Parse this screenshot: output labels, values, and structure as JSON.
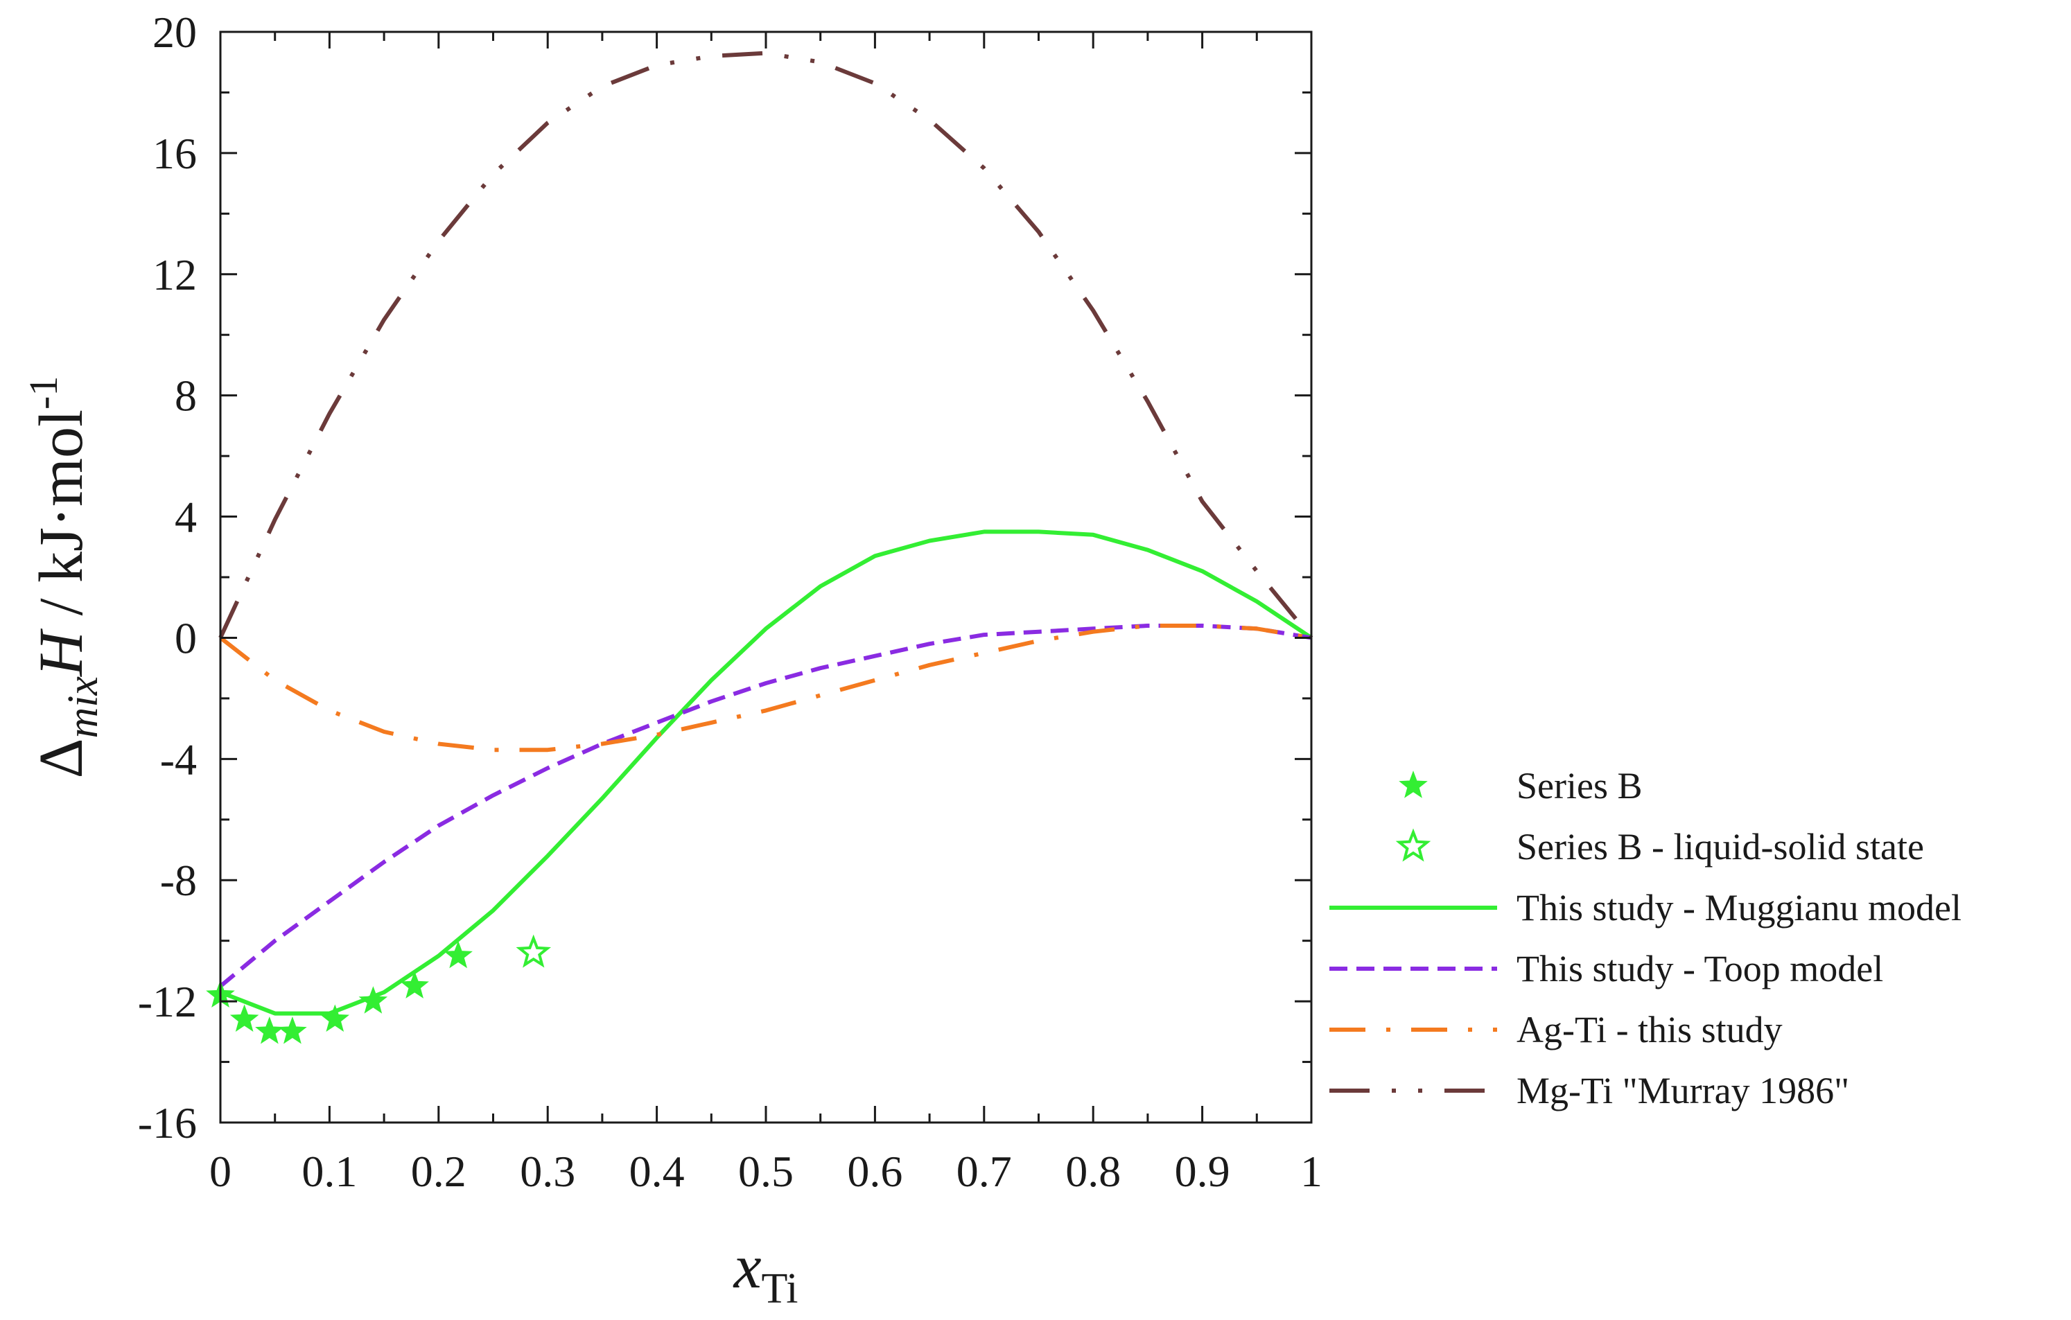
{
  "chart_data": {
    "type": "line",
    "title": "",
    "xlabel": {
      "main": "x",
      "subscript": "Ti"
    },
    "ylabel": {
      "delta": "Δ",
      "mix": "mix",
      "H": "H",
      "units": " / kJ·mol",
      "sup": "-1"
    },
    "xlim": [
      0,
      1
    ],
    "ylim": [
      -16,
      20
    ],
    "xticks": [
      0,
      0.1,
      0.2,
      0.3,
      0.4,
      0.5,
      0.6,
      0.7,
      0.8,
      0.9,
      1
    ],
    "xtick_labels": [
      "0",
      "0.1",
      "0.2",
      "0.3",
      "0.4",
      "0.5",
      "0.6",
      "0.7",
      "0.8",
      "0.9",
      "1"
    ],
    "yticks": [
      -16,
      -12,
      -8,
      -4,
      0,
      4,
      8,
      12,
      16,
      20
    ],
    "ytick_labels": [
      "-16",
      "-12",
      "-8",
      "-4",
      "0",
      "4",
      "8",
      "12",
      "16",
      "20"
    ],
    "grid": false,
    "legend_position": "right-middle",
    "series": [
      {
        "name": "Series B",
        "kind": "scatter",
        "marker": "filled-star",
        "color": "#33ee33",
        "x": [
          0.0,
          0.022,
          0.045,
          0.066,
          0.105,
          0.14,
          0.178,
          0.218
        ],
        "y": [
          -11.8,
          -12.6,
          -13.0,
          -13.0,
          -12.6,
          -12.0,
          -11.5,
          -10.5
        ]
      },
      {
        "name": "Series B - liquid-solid state",
        "kind": "scatter",
        "marker": "open-star",
        "color": "#33ee33",
        "x": [
          0.287
        ],
        "y": [
          -10.4
        ]
      },
      {
        "name": "This study - Muggianu model",
        "kind": "line",
        "dash": "solid",
        "color": "#33ee33",
        "x": [
          0,
          0.05,
          0.1,
          0.15,
          0.2,
          0.25,
          0.3,
          0.35,
          0.4,
          0.45,
          0.5,
          0.55,
          0.6,
          0.65,
          0.7,
          0.75,
          0.8,
          0.85,
          0.9,
          0.95,
          1.0
        ],
        "y": [
          -11.7,
          -12.4,
          -12.4,
          -11.7,
          -10.5,
          -9.0,
          -7.2,
          -5.3,
          -3.3,
          -1.4,
          0.3,
          1.7,
          2.7,
          3.2,
          3.5,
          3.5,
          3.4,
          2.9,
          2.2,
          1.2,
          0.0
        ]
      },
      {
        "name": "This study - Toop model",
        "kind": "line",
        "dash": "short-dash",
        "color": "#8a2be2",
        "x": [
          0,
          0.05,
          0.1,
          0.15,
          0.2,
          0.25,
          0.3,
          0.35,
          0.4,
          0.45,
          0.5,
          0.55,
          0.6,
          0.65,
          0.7,
          0.75,
          0.8,
          0.85,
          0.9,
          0.95,
          1.0
        ],
        "y": [
          -11.5,
          -10.0,
          -8.7,
          -7.4,
          -6.2,
          -5.2,
          -4.3,
          -3.5,
          -2.8,
          -2.1,
          -1.5,
          -1.0,
          -0.6,
          -0.2,
          0.1,
          0.2,
          0.3,
          0.4,
          0.4,
          0.3,
          0.0
        ]
      },
      {
        "name": "Ag-Ti - this study",
        "kind": "line",
        "dash": "dash-dot",
        "color": "#f47a1f",
        "x": [
          0,
          0.05,
          0.1,
          0.15,
          0.2,
          0.25,
          0.3,
          0.35,
          0.4,
          0.45,
          0.5,
          0.55,
          0.6,
          0.65,
          0.7,
          0.75,
          0.8,
          0.85,
          0.9,
          0.95,
          1.0
        ],
        "y": [
          0.0,
          -1.4,
          -2.4,
          -3.1,
          -3.5,
          -3.7,
          -3.7,
          -3.5,
          -3.2,
          -2.8,
          -2.4,
          -1.9,
          -1.4,
          -0.9,
          -0.5,
          -0.1,
          0.2,
          0.4,
          0.4,
          0.3,
          0.0
        ]
      },
      {
        "name": "Mg-Ti \"Murray 1986\"",
        "kind": "line",
        "dash": "dash-dot-dot",
        "color": "#6b3a3a",
        "x": [
          0,
          0.05,
          0.1,
          0.15,
          0.2,
          0.25,
          0.3,
          0.35,
          0.4,
          0.45,
          0.5,
          0.55,
          0.6,
          0.65,
          0.7,
          0.75,
          0.8,
          0.85,
          0.9,
          0.95,
          1.0
        ],
        "y": [
          0.0,
          3.9,
          7.4,
          10.5,
          13.1,
          15.3,
          17.0,
          18.2,
          18.9,
          19.2,
          19.3,
          19.0,
          18.3,
          17.1,
          15.5,
          13.4,
          10.8,
          7.8,
          4.5,
          2.2,
          0.0
        ]
      }
    ]
  }
}
